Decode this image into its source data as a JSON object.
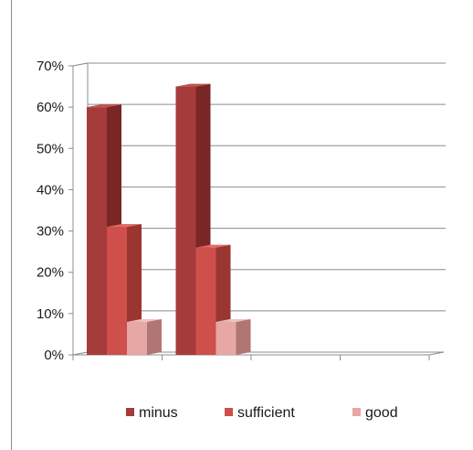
{
  "chart_data": {
    "type": "bar",
    "title": "",
    "xlabel": "",
    "ylabel": "",
    "categories": [
      "",
      "",
      "",
      ""
    ],
    "series": [
      {
        "name": "minus",
        "values": [
          0.6,
          0.65,
          0,
          0
        ],
        "color": "#a53b3b",
        "side": "#7a2626",
        "top": "#c25252"
      },
      {
        "name": "sufficient",
        "values": [
          0.31,
          0.26,
          0,
          0
        ],
        "color": "#cf4f4a",
        "side": "#9a3532",
        "top": "#e06a64"
      },
      {
        "name": "good",
        "values": [
          0.08,
          0.08,
          0,
          0
        ],
        "color": "#e6a7a5",
        "side": "#b07674",
        "top": "#f0c1bf"
      }
    ],
    "ylim": [
      0,
      0.7
    ],
    "yticks": [
      "0%",
      "10%",
      "20%",
      "30%",
      "40%",
      "50%",
      "60%",
      "70%"
    ],
    "grid": true,
    "legend_position": "bottom"
  }
}
